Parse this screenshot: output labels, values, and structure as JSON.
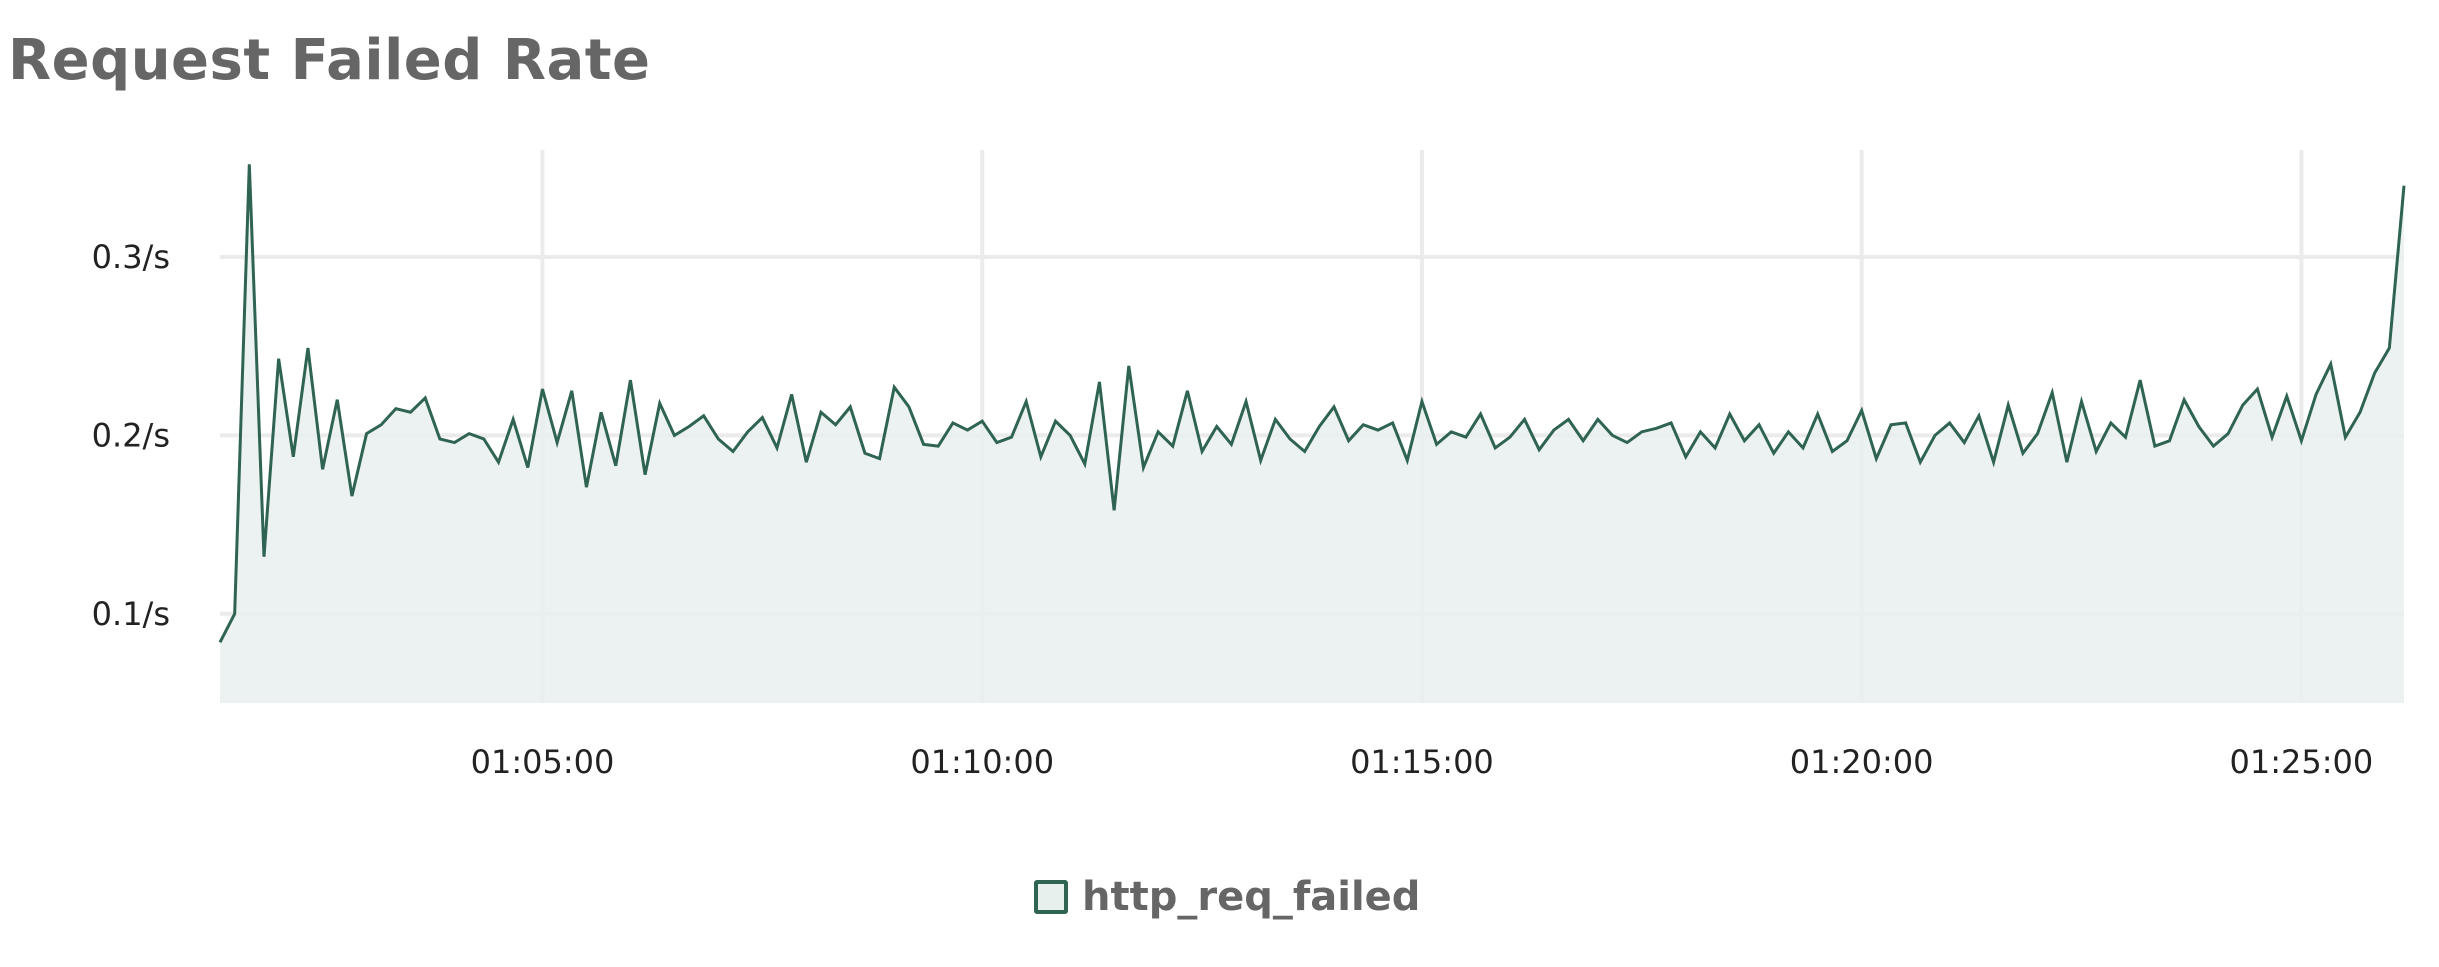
{
  "chart_data": {
    "type": "area",
    "title": "Request Failed Rate",
    "xlabel": "",
    "ylabel": "",
    "x_axis": {
      "type": "time",
      "start": "01:01:20",
      "end": "01:26:10",
      "ticks": [
        "01:05:00",
        "01:10:00",
        "01:15:00",
        "01:20:00",
        "01:25:00"
      ]
    },
    "y_axis": {
      "unit": "/s",
      "ticks": [
        0.1,
        0.2,
        0.3
      ],
      "tick_labels": [
        "0.1/s",
        "0.2/s",
        "0.3/s"
      ],
      "ylim": [
        0.05,
        0.36
      ]
    },
    "grid": true,
    "legend_position": "bottom-center",
    "series": [
      {
        "name": "http_req_failed",
        "line_color": "#2f6352",
        "fill_color": "#e8f0ee",
        "values": [
          0.084,
          0.1,
          0.352,
          0.132,
          0.243,
          0.188,
          0.249,
          0.181,
          0.22,
          0.166,
          0.201,
          0.206,
          0.215,
          0.213,
          0.221,
          0.198,
          0.196,
          0.201,
          0.198,
          0.185,
          0.209,
          0.182,
          0.226,
          0.196,
          0.225,
          0.171,
          0.213,
          0.183,
          0.231,
          0.178,
          0.218,
          0.2,
          0.205,
          0.211,
          0.198,
          0.191,
          0.202,
          0.21,
          0.193,
          0.223,
          0.185,
          0.213,
          0.206,
          0.216,
          0.19,
          0.187,
          0.227,
          0.216,
          0.195,
          0.194,
          0.207,
          0.203,
          0.208,
          0.196,
          0.199,
          0.219,
          0.188,
          0.208,
          0.2,
          0.184,
          0.23,
          0.158,
          0.239,
          0.182,
          0.202,
          0.194,
          0.225,
          0.191,
          0.205,
          0.195,
          0.219,
          0.186,
          0.209,
          0.198,
          0.191,
          0.205,
          0.216,
          0.197,
          0.206,
          0.203,
          0.207,
          0.186,
          0.219,
          0.195,
          0.202,
          0.199,
          0.212,
          0.193,
          0.199,
          0.209,
          0.192,
          0.203,
          0.209,
          0.197,
          0.209,
          0.2,
          0.196,
          0.202,
          0.204,
          0.207,
          0.188,
          0.202,
          0.193,
          0.212,
          0.197,
          0.206,
          0.19,
          0.202,
          0.193,
          0.212,
          0.191,
          0.197,
          0.214,
          0.187,
          0.206,
          0.207,
          0.185,
          0.2,
          0.207,
          0.196,
          0.211,
          0.185,
          0.217,
          0.19,
          0.201,
          0.224,
          0.185,
          0.219,
          0.191,
          0.207,
          0.199,
          0.231,
          0.194,
          0.197,
          0.22,
          0.205,
          0.194,
          0.201,
          0.217,
          0.226,
          0.199,
          0.222,
          0.197,
          0.223,
          0.24,
          0.199,
          0.213,
          0.235,
          0.249,
          0.34
        ]
      }
    ]
  },
  "legend": {
    "items": [
      {
        "label": "http_req_failed"
      }
    ]
  }
}
